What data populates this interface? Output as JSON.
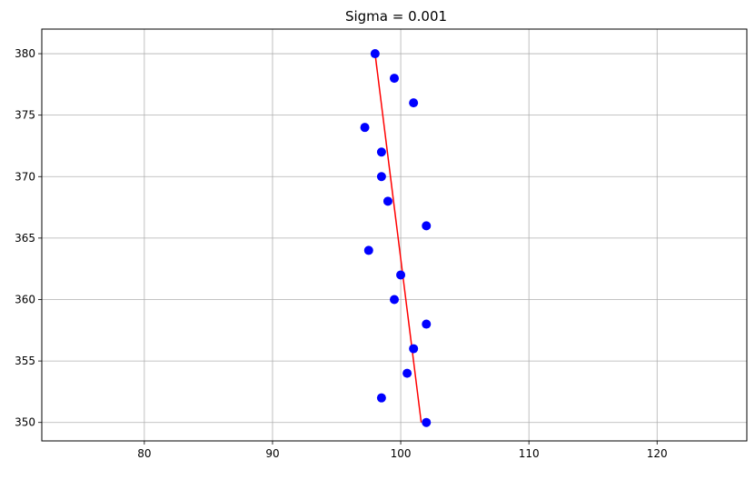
{
  "chart_data": {
    "type": "scatter",
    "title": "Sigma = 0.001",
    "xlabel": "",
    "ylabel": "",
    "xlim": [
      72,
      127
    ],
    "ylim": [
      348.5,
      382
    ],
    "xticks": [
      80,
      90,
      100,
      110,
      120
    ],
    "yticks": [
      350,
      355,
      360,
      365,
      370,
      375,
      380
    ],
    "grid": true,
    "colors": {
      "points": "#0000ff",
      "line": "#ff0000",
      "grid": "#b0b0b0"
    },
    "points": [
      {
        "x": 98.0,
        "y": 380
      },
      {
        "x": 99.5,
        "y": 378
      },
      {
        "x": 101.0,
        "y": 376
      },
      {
        "x": 97.2,
        "y": 374
      },
      {
        "x": 98.5,
        "y": 372
      },
      {
        "x": 98.5,
        "y": 370
      },
      {
        "x": 99.0,
        "y": 368
      },
      {
        "x": 102.0,
        "y": 366
      },
      {
        "x": 97.5,
        "y": 364
      },
      {
        "x": 100.0,
        "y": 362
      },
      {
        "x": 99.5,
        "y": 360
      },
      {
        "x": 102.0,
        "y": 358
      },
      {
        "x": 101.0,
        "y": 356
      },
      {
        "x": 100.5,
        "y": 354
      },
      {
        "x": 98.5,
        "y": 352
      },
      {
        "x": 102.0,
        "y": 350
      }
    ],
    "fit_line": [
      {
        "x": 98.0,
        "y": 380
      },
      {
        "x": 101.6,
        "y": 350
      }
    ]
  }
}
